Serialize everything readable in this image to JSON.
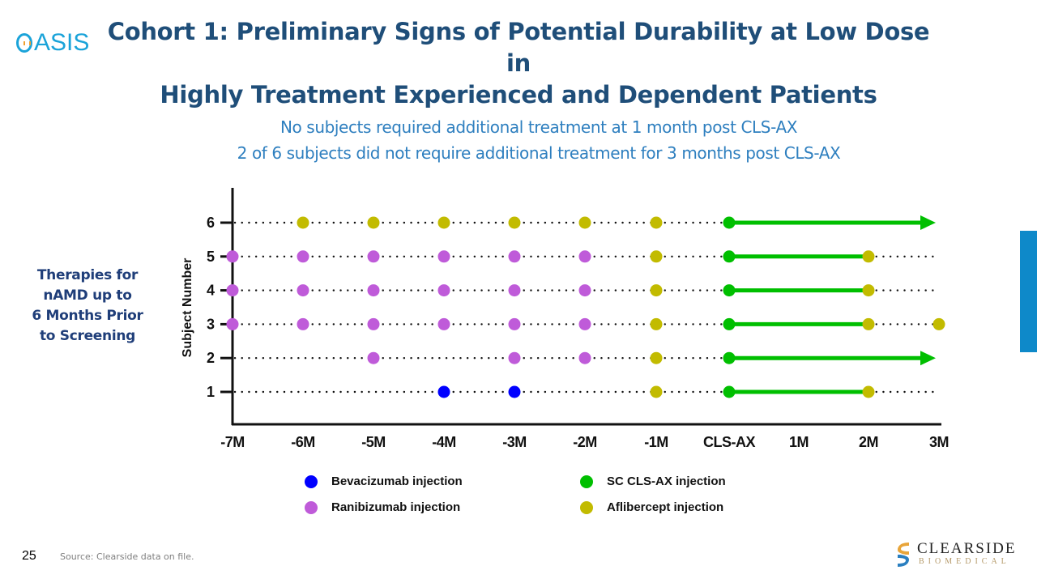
{
  "header": {
    "title_line1": "Cohort 1: Preliminary Signs of Potential Durability at Low Dose in",
    "title_line2": "Highly Treatment Experienced and Dependent Patients",
    "logo_text": "ASIS",
    "subtitle_line1": "No subjects required additional treatment at 1 month post CLS-AX",
    "subtitle_line2": "2 of 6 subjects did not require additional treatment for 3 months post CLS-AX"
  },
  "side_label": [
    "Therapies for",
    "nAMD up to",
    "6 Months Prior",
    "to Screening"
  ],
  "footer": {
    "slide_number": "25",
    "source": "Source: Clearside data on file.",
    "company_name": "CLEARSIDE",
    "company_sub": "BIOMEDICAL"
  },
  "colors": {
    "title": "#1f4e79",
    "subtitle": "#2e7fbf",
    "bevacizumab": "#0000ff",
    "ranibizumab": "#bf5bd9",
    "cls_ax": "#00bf00",
    "aflibercept": "#c2bb00",
    "tab": "#0e89c9"
  },
  "chart_data": {
    "type": "scatter",
    "title": "",
    "xlabel": "",
    "ylabel": "Subject Number",
    "x_categories": [
      "-7M",
      "-6M",
      "-5M",
      "-4M",
      "-3M",
      "-2M",
      "-1M",
      "CLS-AX",
      "1M",
      "2M",
      "3M"
    ],
    "y_categories": [
      "1",
      "2",
      "3",
      "4",
      "5",
      "6"
    ],
    "legend": [
      {
        "key": "bevacizumab",
        "label": "Bevacizumab injection"
      },
      {
        "key": "cls_ax",
        "label": "SC CLS-AX injection"
      },
      {
        "key": "ranibizumab",
        "label": "Ranibizumab injection"
      },
      {
        "key": "aflibercept",
        "label": "Aflibercept injection"
      }
    ],
    "subjects": [
      {
        "subject": 6,
        "points": [
          {
            "x": "-6M",
            "type": "aflibercept"
          },
          {
            "x": "-5M",
            "type": "aflibercept"
          },
          {
            "x": "-4M",
            "type": "aflibercept"
          },
          {
            "x": "-3M",
            "type": "aflibercept"
          },
          {
            "x": "-2M",
            "type": "aflibercept"
          },
          {
            "x": "-1M",
            "type": "aflibercept"
          },
          {
            "x": "CLS-AX",
            "type": "cls_ax"
          }
        ],
        "durability_end": "3M",
        "arrow": true
      },
      {
        "subject": 5,
        "points": [
          {
            "x": "-7M",
            "type": "ranibizumab"
          },
          {
            "x": "-6M",
            "type": "ranibizumab"
          },
          {
            "x": "-5M",
            "type": "ranibizumab"
          },
          {
            "x": "-4M",
            "type": "ranibizumab"
          },
          {
            "x": "-3M",
            "type": "ranibizumab"
          },
          {
            "x": "-2M",
            "type": "ranibizumab"
          },
          {
            "x": "-1M",
            "type": "aflibercept"
          },
          {
            "x": "CLS-AX",
            "type": "cls_ax"
          },
          {
            "x": "2M",
            "type": "aflibercept"
          }
        ],
        "durability_end": "2M",
        "arrow": false
      },
      {
        "subject": 4,
        "points": [
          {
            "x": "-7M",
            "type": "ranibizumab"
          },
          {
            "x": "-6M",
            "type": "ranibizumab"
          },
          {
            "x": "-5M",
            "type": "ranibizumab"
          },
          {
            "x": "-4M",
            "type": "ranibizumab"
          },
          {
            "x": "-3M",
            "type": "ranibizumab"
          },
          {
            "x": "-2M",
            "type": "ranibizumab"
          },
          {
            "x": "-1M",
            "type": "aflibercept"
          },
          {
            "x": "CLS-AX",
            "type": "cls_ax"
          },
          {
            "x": "2M",
            "type": "aflibercept"
          }
        ],
        "durability_end": "2M",
        "arrow": false
      },
      {
        "subject": 3,
        "points": [
          {
            "x": "-7M",
            "type": "ranibizumab"
          },
          {
            "x": "-6M",
            "type": "ranibizumab"
          },
          {
            "x": "-5M",
            "type": "ranibizumab"
          },
          {
            "x": "-4M",
            "type": "ranibizumab"
          },
          {
            "x": "-3M",
            "type": "ranibizumab"
          },
          {
            "x": "-2M",
            "type": "ranibizumab"
          },
          {
            "x": "-1M",
            "type": "aflibercept"
          },
          {
            "x": "CLS-AX",
            "type": "cls_ax"
          },
          {
            "x": "2M",
            "type": "aflibercept"
          },
          {
            "x": "3M",
            "type": "aflibercept"
          }
        ],
        "durability_end": "2M",
        "arrow": false
      },
      {
        "subject": 2,
        "points": [
          {
            "x": "-5M",
            "type": "ranibizumab"
          },
          {
            "x": "-3M",
            "type": "ranibizumab"
          },
          {
            "x": "-2M",
            "type": "ranibizumab"
          },
          {
            "x": "-1M",
            "type": "aflibercept"
          },
          {
            "x": "CLS-AX",
            "type": "cls_ax"
          }
        ],
        "durability_end": "3M",
        "arrow": true
      },
      {
        "subject": 1,
        "points": [
          {
            "x": "-4M",
            "type": "bevacizumab"
          },
          {
            "x": "-3M",
            "type": "bevacizumab"
          },
          {
            "x": "-1M",
            "type": "aflibercept"
          },
          {
            "x": "CLS-AX",
            "type": "cls_ax"
          },
          {
            "x": "2M",
            "type": "aflibercept"
          }
        ],
        "durability_end": "2M",
        "arrow": false
      }
    ]
  }
}
